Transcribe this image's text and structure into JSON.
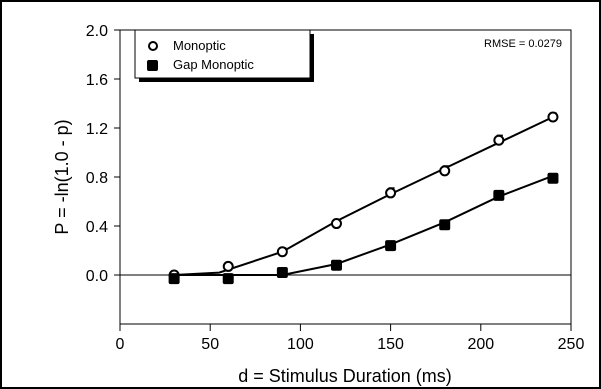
{
  "chart_data": {
    "type": "line",
    "xlabel": "d = Stimulus Duration (ms)",
    "ylabel": "P = -ln(1.0 - p)",
    "xlim": [
      0,
      250
    ],
    "ylim": [
      -0.4,
      2.0
    ],
    "xticks": [
      0,
      50,
      100,
      150,
      200,
      250
    ],
    "yticks": [
      0.0,
      0.4,
      0.8,
      1.2,
      1.6,
      2.0
    ],
    "ytick_labels": [
      "0.0",
      "0.4",
      "0.8",
      "1.2",
      "1.6",
      "2.0"
    ],
    "reference_line_y": 0,
    "legend_position": "top-left",
    "annotation": "RMSE = 0.0279",
    "series": [
      {
        "name": "Monoptic",
        "marker": "open-circle",
        "points": [
          {
            "x": 30,
            "y": 0.0,
            "err": 0.02
          },
          {
            "x": 60,
            "y": 0.07,
            "err": 0.02
          },
          {
            "x": 90,
            "y": 0.19,
            "err": 0.03
          },
          {
            "x": 120,
            "y": 0.42,
            "err": 0.03
          },
          {
            "x": 150,
            "y": 0.67,
            "err": 0.04
          },
          {
            "x": 180,
            "y": 0.85,
            "err": 0.04
          },
          {
            "x": 210,
            "y": 1.1,
            "err": 0.04
          },
          {
            "x": 240,
            "y": 1.29,
            "err": 0.03
          }
        ],
        "fit": [
          [
            30,
            0.0
          ],
          [
            55,
            0.02
          ],
          [
            90,
            0.19
          ],
          [
            120,
            0.44
          ],
          [
            150,
            0.66
          ],
          [
            180,
            0.87
          ],
          [
            210,
            1.08
          ],
          [
            240,
            1.29
          ]
        ]
      },
      {
        "name": "Gap Monoptic",
        "marker": "filled-square",
        "points": [
          {
            "x": 30,
            "y": -0.03,
            "err": 0.02
          },
          {
            "x": 60,
            "y": -0.03,
            "err": 0.02
          },
          {
            "x": 90,
            "y": 0.02,
            "err": 0.02
          },
          {
            "x": 120,
            "y": 0.08,
            "err": 0.02
          },
          {
            "x": 150,
            "y": 0.24,
            "err": 0.03
          },
          {
            "x": 180,
            "y": 0.41,
            "err": 0.02
          },
          {
            "x": 210,
            "y": 0.65,
            "err": 0.02
          },
          {
            "x": 240,
            "y": 0.79,
            "err": 0.03
          }
        ],
        "fit": [
          [
            30,
            0.0
          ],
          [
            90,
            0.0
          ],
          [
            120,
            0.09
          ],
          [
            150,
            0.25
          ],
          [
            180,
            0.43
          ],
          [
            210,
            0.64
          ],
          [
            240,
            0.81
          ]
        ]
      }
    ]
  }
}
